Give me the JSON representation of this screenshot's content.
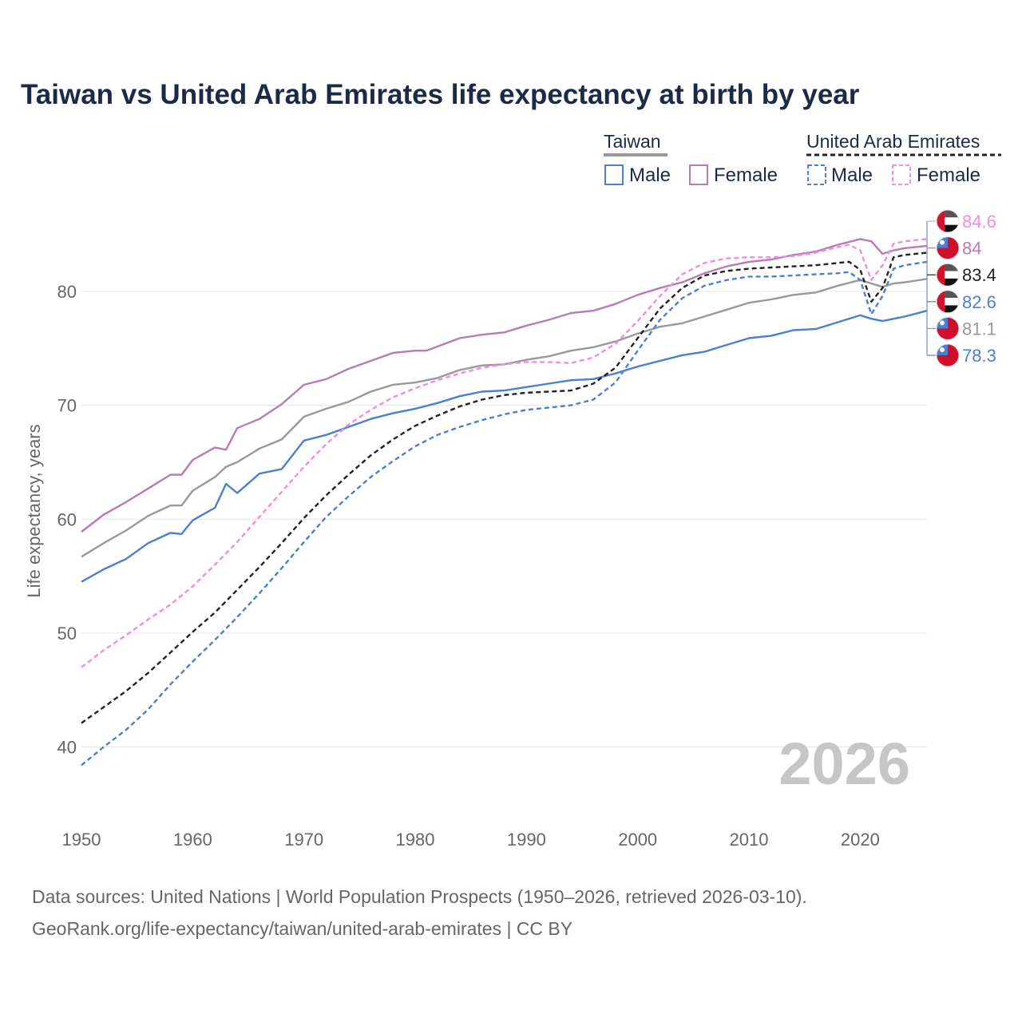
{
  "chart_data": {
    "type": "line",
    "title": "Taiwan vs United Arab Emirates life expectancy at birth by year",
    "ylabel": "Life expectancy, years",
    "xlabel": "",
    "xlim": [
      1950,
      2026
    ],
    "ylim": [
      34.5,
      87.5
    ],
    "x_ticks": [
      "1950",
      "1960",
      "1970",
      "1980",
      "1990",
      "2000",
      "2010",
      "2020"
    ],
    "y_ticks": [
      "40",
      "50",
      "60",
      "70",
      "80"
    ],
    "current_year": "2026",
    "legend": {
      "groups": [
        {
          "name": "Taiwan",
          "line_color": "#999999",
          "dashed": false,
          "items": [
            {
              "label": "Male",
              "color": "#4a7fd4"
            },
            {
              "label": "Female",
              "color": "#b77cb4"
            }
          ]
        },
        {
          "name": "United Arab Emirates",
          "line_color": "#222222",
          "dashed": true,
          "items": [
            {
              "label": "Male",
              "color": "#4a7fd4"
            },
            {
              "label": "Female",
              "color": "#f28ae6"
            }
          ]
        }
      ]
    },
    "series": [
      {
        "name": "Taiwan Female",
        "country": "Taiwan",
        "color": "#b77cb4",
        "dashed": false,
        "end_label": "84",
        "flag": "taiwan",
        "points": [
          [
            1950,
            58.9
          ],
          [
            1952,
            60.4
          ],
          [
            1954,
            61.5
          ],
          [
            1956,
            62.7
          ],
          [
            1958,
            63.9
          ],
          [
            1959,
            63.9
          ],
          [
            1960,
            65.2
          ],
          [
            1962,
            66.3
          ],
          [
            1963,
            66.1
          ],
          [
            1964,
            68.0
          ],
          [
            1966,
            68.8
          ],
          [
            1968,
            70.1
          ],
          [
            1970,
            71.8
          ],
          [
            1972,
            72.3
          ],
          [
            1974,
            73.2
          ],
          [
            1976,
            73.9
          ],
          [
            1978,
            74.6
          ],
          [
            1980,
            74.8
          ],
          [
            1981,
            74.8
          ],
          [
            1984,
            75.9
          ],
          [
            1986,
            76.2
          ],
          [
            1988,
            76.4
          ],
          [
            1990,
            77.0
          ],
          [
            1992,
            77.5
          ],
          [
            1994,
            78.1
          ],
          [
            1996,
            78.3
          ],
          [
            1998,
            78.9
          ],
          [
            2000,
            79.7
          ],
          [
            2002,
            80.3
          ],
          [
            2004,
            80.8
          ],
          [
            2006,
            81.6
          ],
          [
            2008,
            82.2
          ],
          [
            2010,
            82.6
          ],
          [
            2012,
            82.8
          ],
          [
            2014,
            83.2
          ],
          [
            2016,
            83.5
          ],
          [
            2018,
            84.1
          ],
          [
            2020,
            84.6
          ],
          [
            2021,
            84.4
          ],
          [
            2022,
            83.3
          ],
          [
            2023,
            83.6
          ],
          [
            2024,
            83.8
          ],
          [
            2026,
            84.0
          ]
        ]
      },
      {
        "name": "Taiwan Total",
        "country": "Taiwan",
        "color": "#999999",
        "dashed": false,
        "end_label": "81.1",
        "flag": "taiwan",
        "points": [
          [
            1950,
            56.7
          ],
          [
            1952,
            57.9
          ],
          [
            1954,
            59.0
          ],
          [
            1956,
            60.3
          ],
          [
            1958,
            61.2
          ],
          [
            1959,
            61.2
          ],
          [
            1960,
            62.5
          ],
          [
            1962,
            63.7
          ],
          [
            1963,
            64.6
          ],
          [
            1964,
            65.0
          ],
          [
            1966,
            66.2
          ],
          [
            1968,
            67.0
          ],
          [
            1970,
            69.0
          ],
          [
            1972,
            69.7
          ],
          [
            1974,
            70.3
          ],
          [
            1976,
            71.2
          ],
          [
            1978,
            71.8
          ],
          [
            1980,
            72.0
          ],
          [
            1982,
            72.4
          ],
          [
            1984,
            73.1
          ],
          [
            1986,
            73.5
          ],
          [
            1988,
            73.6
          ],
          [
            1990,
            74.0
          ],
          [
            1992,
            74.3
          ],
          [
            1994,
            74.8
          ],
          [
            1996,
            75.1
          ],
          [
            1998,
            75.6
          ],
          [
            2000,
            76.3
          ],
          [
            2002,
            76.9
          ],
          [
            2004,
            77.2
          ],
          [
            2006,
            77.8
          ],
          [
            2008,
            78.4
          ],
          [
            2010,
            79.0
          ],
          [
            2012,
            79.3
          ],
          [
            2014,
            79.7
          ],
          [
            2016,
            79.9
          ],
          [
            2018,
            80.5
          ],
          [
            2020,
            81.0
          ],
          [
            2021,
            80.7
          ],
          [
            2022,
            80.4
          ],
          [
            2023,
            80.7
          ],
          [
            2024,
            80.8
          ],
          [
            2026,
            81.1
          ]
        ]
      },
      {
        "name": "Taiwan Male",
        "country": "Taiwan",
        "color": "#4a7fd4",
        "dashed": false,
        "end_label": "78.3",
        "flag": "taiwan",
        "points": [
          [
            1950,
            54.5
          ],
          [
            1952,
            55.6
          ],
          [
            1954,
            56.5
          ],
          [
            1956,
            57.9
          ],
          [
            1958,
            58.8
          ],
          [
            1959,
            58.7
          ],
          [
            1960,
            59.9
          ],
          [
            1962,
            61.0
          ],
          [
            1963,
            63.1
          ],
          [
            1964,
            62.3
          ],
          [
            1966,
            64.0
          ],
          [
            1968,
            64.4
          ],
          [
            1970,
            66.9
          ],
          [
            1972,
            67.4
          ],
          [
            1974,
            68.1
          ],
          [
            1976,
            68.8
          ],
          [
            1978,
            69.3
          ],
          [
            1980,
            69.7
          ],
          [
            1982,
            70.2
          ],
          [
            1984,
            70.8
          ],
          [
            1986,
            71.2
          ],
          [
            1988,
            71.3
          ],
          [
            1990,
            71.6
          ],
          [
            1992,
            71.9
          ],
          [
            1994,
            72.2
          ],
          [
            1996,
            72.3
          ],
          [
            1998,
            72.8
          ],
          [
            2000,
            73.4
          ],
          [
            2002,
            73.9
          ],
          [
            2004,
            74.4
          ],
          [
            2006,
            74.7
          ],
          [
            2008,
            75.3
          ],
          [
            2010,
            75.9
          ],
          [
            2012,
            76.1
          ],
          [
            2014,
            76.6
          ],
          [
            2016,
            76.7
          ],
          [
            2018,
            77.3
          ],
          [
            2020,
            77.9
          ],
          [
            2021,
            77.6
          ],
          [
            2022,
            77.4
          ],
          [
            2024,
            77.8
          ],
          [
            2026,
            78.3
          ]
        ]
      },
      {
        "name": "United Arab Emirates Female",
        "country": "United Arab Emirates",
        "color": "#f28ae6",
        "dashed": true,
        "end_label": "84.6",
        "flag": "uae",
        "points": [
          [
            1950,
            47.0
          ],
          [
            1952,
            48.5
          ],
          [
            1954,
            49.8
          ],
          [
            1956,
            51.2
          ],
          [
            1958,
            52.5
          ],
          [
            1960,
            54.1
          ],
          [
            1962,
            56.0
          ],
          [
            1964,
            58.0
          ],
          [
            1966,
            60.2
          ],
          [
            1968,
            62.4
          ],
          [
            1970,
            64.6
          ],
          [
            1972,
            66.6
          ],
          [
            1974,
            68.3
          ],
          [
            1976,
            69.6
          ],
          [
            1978,
            70.7
          ],
          [
            1980,
            71.5
          ],
          [
            1982,
            72.2
          ],
          [
            1984,
            72.8
          ],
          [
            1986,
            73.3
          ],
          [
            1988,
            73.6
          ],
          [
            1990,
            73.8
          ],
          [
            1992,
            73.8
          ],
          [
            1994,
            73.7
          ],
          [
            1996,
            74.2
          ],
          [
            1998,
            75.4
          ],
          [
            2000,
            77.4
          ],
          [
            2002,
            79.6
          ],
          [
            2004,
            81.5
          ],
          [
            2006,
            82.5
          ],
          [
            2008,
            82.9
          ],
          [
            2010,
            83.0
          ],
          [
            2012,
            83.0
          ],
          [
            2014,
            83.1
          ],
          [
            2016,
            83.4
          ],
          [
            2018,
            83.9
          ],
          [
            2019,
            84.1
          ],
          [
            2020,
            83.6
          ],
          [
            2021,
            81.0
          ],
          [
            2022,
            82.3
          ],
          [
            2023,
            84.2
          ],
          [
            2024,
            84.4
          ],
          [
            2026,
            84.6
          ]
        ]
      },
      {
        "name": "United Arab Emirates Total",
        "country": "United Arab Emirates",
        "color": "#222222",
        "dashed": true,
        "end_label": "83.4",
        "flag": "uae",
        "points": [
          [
            1950,
            42.1
          ],
          [
            1952,
            43.5
          ],
          [
            1954,
            44.9
          ],
          [
            1956,
            46.5
          ],
          [
            1958,
            48.3
          ],
          [
            1960,
            50.1
          ],
          [
            1962,
            51.8
          ],
          [
            1964,
            53.8
          ],
          [
            1966,
            55.8
          ],
          [
            1968,
            57.9
          ],
          [
            1970,
            60.1
          ],
          [
            1972,
            62.1
          ],
          [
            1974,
            63.9
          ],
          [
            1976,
            65.6
          ],
          [
            1978,
            67.0
          ],
          [
            1980,
            68.2
          ],
          [
            1982,
            69.1
          ],
          [
            1984,
            69.9
          ],
          [
            1986,
            70.5
          ],
          [
            1988,
            70.9
          ],
          [
            1990,
            71.1
          ],
          [
            1992,
            71.2
          ],
          [
            1994,
            71.3
          ],
          [
            1996,
            71.9
          ],
          [
            1998,
            73.3
          ],
          [
            2000,
            75.9
          ],
          [
            2002,
            78.5
          ],
          [
            2004,
            80.3
          ],
          [
            2006,
            81.4
          ],
          [
            2008,
            81.8
          ],
          [
            2010,
            82.0
          ],
          [
            2012,
            82.1
          ],
          [
            2014,
            82.2
          ],
          [
            2016,
            82.3
          ],
          [
            2018,
            82.5
          ],
          [
            2019,
            82.6
          ],
          [
            2020,
            81.9
          ],
          [
            2021,
            79.1
          ],
          [
            2022,
            80.3
          ],
          [
            2023,
            83.0
          ],
          [
            2024,
            83.2
          ],
          [
            2026,
            83.4
          ]
        ]
      },
      {
        "name": "United Arab Emirates Male",
        "country": "United Arab Emirates",
        "color": "#4a7fd4",
        "dashed": true,
        "end_label": "82.6",
        "flag": "uae",
        "points": [
          [
            1950,
            38.4
          ],
          [
            1952,
            40.0
          ],
          [
            1954,
            41.5
          ],
          [
            1956,
            43.3
          ],
          [
            1958,
            45.5
          ],
          [
            1960,
            47.5
          ],
          [
            1962,
            49.4
          ],
          [
            1964,
            51.4
          ],
          [
            1966,
            53.5
          ],
          [
            1968,
            55.7
          ],
          [
            1970,
            58.0
          ],
          [
            1972,
            60.2
          ],
          [
            1974,
            62.0
          ],
          [
            1976,
            63.7
          ],
          [
            1978,
            65.1
          ],
          [
            1980,
            66.4
          ],
          [
            1982,
            67.4
          ],
          [
            1984,
            68.1
          ],
          [
            1986,
            68.7
          ],
          [
            1988,
            69.2
          ],
          [
            1990,
            69.6
          ],
          [
            1992,
            69.8
          ],
          [
            1994,
            70.0
          ],
          [
            1996,
            70.5
          ],
          [
            1998,
            72.0
          ],
          [
            2000,
            74.8
          ],
          [
            2002,
            77.5
          ],
          [
            2004,
            79.4
          ],
          [
            2006,
            80.5
          ],
          [
            2008,
            81.0
          ],
          [
            2010,
            81.3
          ],
          [
            2012,
            81.3
          ],
          [
            2014,
            81.4
          ],
          [
            2016,
            81.5
          ],
          [
            2018,
            81.6
          ],
          [
            2019,
            81.7
          ],
          [
            2020,
            81.0
          ],
          [
            2021,
            78.0
          ],
          [
            2022,
            79.6
          ],
          [
            2023,
            82.0
          ],
          [
            2024,
            82.3
          ],
          [
            2026,
            82.6
          ]
        ]
      }
    ]
  },
  "footer": {
    "source_line": "Data sources: United Nations | World Population Prospects (1950–2026, retrieved 2026-03-10).",
    "url_line": "GeoRank.org/life-expectancy/taiwan/united-arab-emirates | CC BY"
  }
}
